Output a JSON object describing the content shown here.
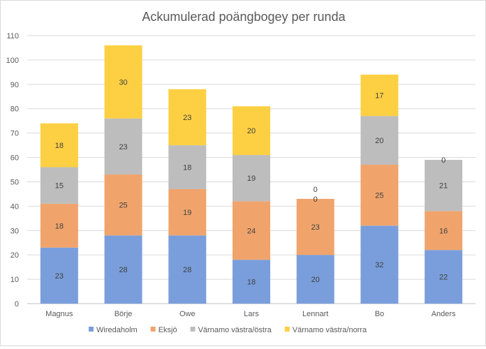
{
  "chart_data": {
    "type": "stacked-bar",
    "title": "Ackumulerad poängbogey per runda",
    "categories": [
      "Magnus",
      "Börje",
      "Owe",
      "Lars",
      "Lennart",
      "Bo",
      "Anders"
    ],
    "series": [
      {
        "name": "Wiredaholm",
        "color": "#7a9edb",
        "values": [
          23,
          28,
          28,
          18,
          20,
          32,
          22
        ]
      },
      {
        "name": "Eksjö",
        "color": "#f0a46c",
        "values": [
          18,
          25,
          19,
          24,
          23,
          25,
          16
        ]
      },
      {
        "name": "Värnamo västra/östra",
        "color": "#bdbdbd",
        "values": [
          15,
          23,
          18,
          19,
          0,
          20,
          21
        ]
      },
      {
        "name": "Värnamo västra/norra",
        "color": "#fdd043",
        "values": [
          18,
          30,
          23,
          20,
          0,
          17,
          0
        ]
      }
    ],
    "ylim": [
      0,
      110
    ],
    "yticks": [
      0,
      10,
      20,
      30,
      40,
      50,
      60,
      70,
      80,
      90,
      100,
      110
    ],
    "grid": true,
    "legend": "bottom"
  }
}
